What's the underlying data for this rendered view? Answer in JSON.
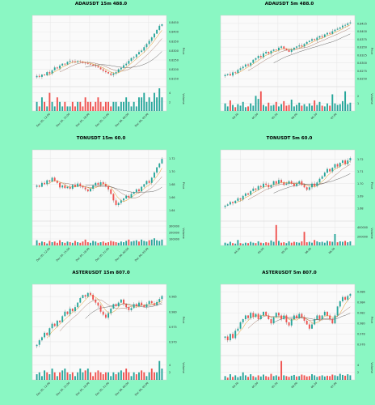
{
  "colors": {
    "page_background": "#8af7c3",
    "plot_background": "#fafafa",
    "grid": "#e2e2e2",
    "up": "#26a69a",
    "down": "#ef5350",
    "ma_fast": "#e08b00",
    "ma_mid": "#9b6b5b",
    "ma_slow": "#555555"
  },
  "chart_data": [
    {
      "type": "candlestick",
      "title": "ADAUSDT 15m 488.0",
      "ylabel": "Price",
      "volume_label": "Volume",
      "price_ticks": [
        "0.8450",
        "0.8400",
        "0.8350",
        "0.8300",
        "0.8250",
        "0.8200",
        "0.8150"
      ],
      "price_ylim": [
        0.8125,
        0.847
      ],
      "volume_ticks": [
        "4",
        "2"
      ],
      "volume_ylim": [
        0,
        5
      ],
      "x_ticks": [
        "Dec 05, 12:00",
        "Dec 05, 15:00",
        "Dec 05, 18:00",
        "Dec 05, 21:00",
        "Dec 06, 00:00",
        "Dec 06, 03:00"
      ],
      "close": [
        0.8165,
        0.816,
        0.8172,
        0.8168,
        0.8185,
        0.8178,
        0.8195,
        0.821,
        0.8205,
        0.822,
        0.823,
        0.8226,
        0.824,
        0.8245,
        0.8242,
        0.8238,
        0.8243,
        0.824,
        0.8235,
        0.8232,
        0.8228,
        0.8225,
        0.822,
        0.8216,
        0.821,
        0.82,
        0.8192,
        0.8185,
        0.8178,
        0.817,
        0.8178,
        0.8185,
        0.82,
        0.8208,
        0.8222,
        0.823,
        0.8245,
        0.826,
        0.8265,
        0.828,
        0.8292,
        0.83,
        0.8318,
        0.8335,
        0.8352,
        0.837,
        0.839,
        0.841,
        0.8432,
        0.844
      ],
      "volume": [
        2,
        1,
        3,
        2,
        1,
        4,
        2,
        1,
        3,
        2,
        1,
        2,
        1,
        1,
        2,
        1,
        2,
        2,
        1,
        3,
        2,
        2,
        1,
        2,
        3,
        2,
        1,
        2,
        2,
        1,
        2,
        2,
        1,
        2,
        2,
        3,
        2,
        1,
        2,
        1,
        3,
        3,
        4,
        2,
        3,
        2,
        4,
        3,
        5,
        3
      ]
    },
    {
      "type": "candlestick",
      "title": "ADAUSDT 5m 488.0",
      "ylabel": "Price",
      "volume_label": "Volume",
      "price_ticks": [
        "0.8425",
        "0.8400",
        "0.8375",
        "0.8350",
        "0.8325",
        "0.8300",
        "0.8275",
        "0.8250"
      ],
      "price_ylim": [
        0.8235,
        0.844
      ],
      "volume_ticks": [
        "2",
        "1"
      ],
      "volume_ylim": [
        0,
        3
      ],
      "x_ticks": [
        "04:30",
        "05:00",
        "05:30",
        "06:00",
        "06:30",
        "07:00"
      ],
      "close": [
        0.8262,
        0.8265,
        0.826,
        0.827,
        0.8268,
        0.8278,
        0.8283,
        0.8288,
        0.8295,
        0.8292,
        0.83,
        0.831,
        0.8315,
        0.8322,
        0.8318,
        0.833,
        0.8335,
        0.833,
        0.8338,
        0.8342,
        0.834,
        0.8348,
        0.8352,
        0.8345,
        0.834,
        0.8335,
        0.8342,
        0.8348,
        0.8352,
        0.8355,
        0.8352,
        0.836,
        0.8366,
        0.837,
        0.8375,
        0.8372,
        0.838,
        0.8385,
        0.8382,
        0.839,
        0.8395,
        0.8392,
        0.84,
        0.8405,
        0.8408,
        0.8412,
        0.8418,
        0.842,
        0.8425,
        0.8428
      ],
      "volume": [
        1,
        0.6,
        1.4,
        0.8,
        0.5,
        0.9,
        0.7,
        1.2,
        0.5,
        0.6,
        1.0,
        0.7,
        2.0,
        1.6,
        2.6,
        0.8,
        0.6,
        1.1,
        0.7,
        0.8,
        1.2,
        0.6,
        0.9,
        1.3,
        0.7,
        0.8,
        1.5,
        0.6,
        0.8,
        1.1,
        0.7,
        0.9,
        0.6,
        1.0,
        0.7,
        1.4,
        0.8,
        1.2,
        0.7,
        0.6,
        1.0,
        0.7,
        2.2,
        1.0,
        0.8,
        0.9,
        1.3,
        2.6,
        0.9,
        1.1
      ]
    },
    {
      "type": "candlestick",
      "title": "TONUSDT 15m 60.0",
      "ylabel": "Price",
      "volume_label": "Volume",
      "price_ticks": [
        "1.72",
        "1.70",
        "1.68",
        "1.66",
        "1.64"
      ],
      "price_ylim": [
        1.628,
        1.728
      ],
      "volume_ticks": [
        "300000",
        "200000",
        "100000"
      ],
      "volume_ylim": [
        0,
        350000
      ],
      "x_ticks": [
        "Dec 05, 12:00",
        "Dec 05, 15:00",
        "Dec 05, 18:00",
        "Dec 05, 21:00",
        "Dec 06, 00:00",
        "Dec 06, 03:00"
      ],
      "close": [
        1.678,
        1.676,
        1.682,
        1.68,
        1.686,
        1.684,
        1.69,
        1.685,
        1.682,
        1.675,
        1.678,
        1.674,
        1.676,
        1.673,
        1.679,
        1.676,
        1.681,
        1.677,
        1.675,
        1.672,
        1.669,
        1.673,
        1.678,
        1.682,
        1.679,
        1.683,
        1.68,
        1.677,
        1.672,
        1.665,
        1.655,
        1.648,
        1.651,
        1.655,
        1.658,
        1.662,
        1.659,
        1.665,
        1.668,
        1.672,
        1.669,
        1.676,
        1.68,
        1.685,
        1.682,
        1.69,
        1.698,
        1.706,
        1.712,
        1.719
      ],
      "volume": [
        80000,
        40000,
        60000,
        50000,
        30000,
        70000,
        50000,
        60000,
        40000,
        80000,
        50000,
        40000,
        60000,
        50000,
        40000,
        70000,
        50000,
        40000,
        60000,
        90000,
        50000,
        40000,
        70000,
        60000,
        40000,
        50000,
        60000,
        40000,
        50000,
        70000,
        60000,
        50000,
        40000,
        60000,
        50000,
        70000,
        90000,
        60000,
        70000,
        80000,
        60000,
        90000,
        70000,
        60000,
        80000,
        90000,
        110000,
        80000,
        70000,
        90000
      ]
    },
    {
      "type": "candlestick",
      "title": "TONUSDT 5m 60.0",
      "ylabel": "Price",
      "volume_label": "Volume",
      "price_ticks": [
        "1.72",
        "1.71",
        "1.70",
        "1.69",
        "1.68"
      ],
      "price_ylim": [
        1.672,
        1.725
      ],
      "volume_ticks": [
        "400000",
        "200000"
      ],
      "volume_ylim": [
        0,
        500000
      ],
      "x_ticks": [
        "04:30",
        "05:00",
        "05:30",
        "06:00",
        "06:30"
      ],
      "close": [
        1.682,
        1.683,
        1.685,
        1.684,
        1.686,
        1.688,
        1.687,
        1.69,
        1.692,
        1.691,
        1.694,
        1.696,
        1.695,
        1.698,
        1.697,
        1.7,
        1.699,
        1.697,
        1.699,
        1.702,
        1.7,
        1.703,
        1.701,
        1.699,
        1.7,
        1.702,
        1.7,
        1.698,
        1.7,
        1.702,
        1.699,
        1.697,
        1.695,
        1.697,
        1.7,
        1.698,
        1.701,
        1.704,
        1.706,
        1.709,
        1.712,
        1.71,
        1.713,
        1.716,
        1.714,
        1.717,
        1.719,
        1.716,
        1.719,
        1.721
      ],
      "volume": [
        60000,
        40000,
        80000,
        50000,
        40000,
        120000,
        50000,
        40000,
        60000,
        50000,
        80000,
        60000,
        50000,
        90000,
        60000,
        50000,
        70000,
        60000,
        110000,
        80000,
        450000,
        100000,
        60000,
        70000,
        50000,
        90000,
        60000,
        80000,
        70000,
        60000,
        90000,
        300000,
        70000,
        80000,
        60000,
        120000,
        90000,
        70000,
        80000,
        60000,
        100000,
        90000,
        80000,
        250000,
        70000,
        90000,
        80000,
        100000,
        70000,
        90000
      ]
    },
    {
      "type": "candlestick",
      "title": "ASTERUSDT 15m 807.0",
      "ylabel": "Price",
      "volume_label": "Volume",
      "price_ticks": [
        "0.985",
        "0.980",
        "0.975",
        "0.970",
        "0.965"
      ],
      "price_ylim": [
        0.9665,
        0.988
      ],
      "volume_ticks": [
        "4",
        "2"
      ],
      "volume_ylim": [
        0,
        6
      ],
      "x_ticks": [
        "Dec 05, 12:00",
        "Dec 05, 15:00",
        "Dec 05, 18:00",
        "Dec 05, 21:00",
        "Dec 06, 00:00",
        "Dec 06, 03:00"
      ],
      "close": [
        0.969,
        0.9705,
        0.9715,
        0.973,
        0.9722,
        0.9745,
        0.976,
        0.9752,
        0.977,
        0.9765,
        0.9785,
        0.98,
        0.9792,
        0.981,
        0.9802,
        0.9815,
        0.983,
        0.9845,
        0.9855,
        0.985,
        0.9862,
        0.9856,
        0.984,
        0.983,
        0.982,
        0.98,
        0.979,
        0.978,
        0.9795,
        0.981,
        0.9825,
        0.9818,
        0.983,
        0.984,
        0.9825,
        0.9815,
        0.9805,
        0.9812,
        0.9825,
        0.9818,
        0.983,
        0.9822,
        0.9815,
        0.9825,
        0.9835,
        0.9828,
        0.9822,
        0.9832,
        0.9842,
        0.9852
      ],
      "volume": [
        1.5,
        2,
        1,
        2.5,
        2,
        1.5,
        3,
        2,
        1,
        2,
        2.5,
        3,
        2,
        1.5,
        2,
        1,
        2,
        3,
        2,
        2.5,
        3,
        2,
        1,
        2,
        2.5,
        2,
        1.5,
        2,
        2,
        1,
        2,
        1.5,
        2,
        2.5,
        2,
        3,
        2,
        1,
        2,
        1.5,
        2,
        2.5,
        2,
        1,
        2,
        3,
        2,
        2,
        5,
        3
      ]
    },
    {
      "type": "candlestick",
      "title": "ASTERUSDT 5m 807.0",
      "ylabel": "Price",
      "volume_label": "Volume",
      "price_ticks": [
        "0.986",
        "0.984",
        "0.982",
        "0.980",
        "0.978",
        "0.976"
      ],
      "price_ylim": [
        0.9745,
        0.9868
      ],
      "volume_ticks": [
        "4",
        "2"
      ],
      "volume_ylim": [
        0,
        6
      ],
      "x_ticks": [
        "04:30",
        "05:00",
        "05:30",
        "06:00",
        "06:30",
        "07:00"
      ],
      "close": [
        0.9775,
        0.9768,
        0.978,
        0.9772,
        0.9786,
        0.979,
        0.9802,
        0.9808,
        0.9815,
        0.981,
        0.982,
        0.9812,
        0.9818,
        0.9808,
        0.9815,
        0.9822,
        0.9815,
        0.9808,
        0.98,
        0.9812,
        0.982,
        0.9815,
        0.9808,
        0.9815,
        0.9802,
        0.9796,
        0.9808,
        0.9815,
        0.981,
        0.9818,
        0.9812,
        0.9805,
        0.9798,
        0.979,
        0.9798,
        0.9808,
        0.9815,
        0.9808,
        0.9815,
        0.9822,
        0.9815,
        0.9808,
        0.98,
        0.9815,
        0.9832,
        0.9842,
        0.985,
        0.9845,
        0.9852,
        0.9856
      ],
      "volume": [
        1,
        0.6,
        1.5,
        0.8,
        1.2,
        0.7,
        1,
        2,
        1.2,
        0.8,
        1.5,
        1,
        0.7,
        1.2,
        0.9,
        1.4,
        1,
        0.8,
        1.6,
        1,
        1.2,
        0.9,
        5,
        1.2,
        1,
        0.8,
        1.1,
        1.3,
        0.9,
        1,
        1.4,
        1.2,
        0.9,
        1,
        1.5,
        1.2,
        0.8,
        1,
        1.2,
        0.9,
        1.1,
        1,
        1.4,
        1.2,
        1,
        1.6,
        1.3,
        1.1,
        1.5,
        1.2
      ]
    }
  ]
}
